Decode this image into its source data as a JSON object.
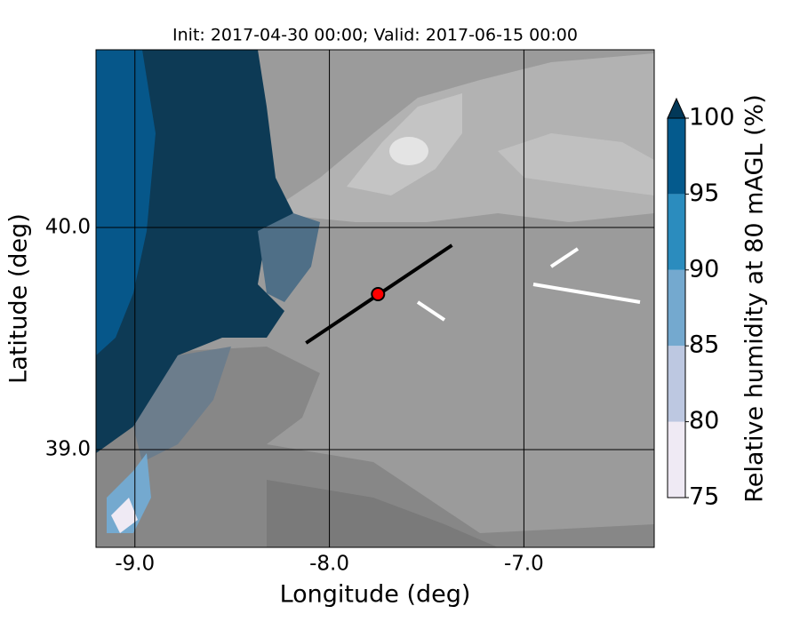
{
  "map": {
    "title": "Init: 2017-04-30 00:00; Valid: 2017-06-15 00:00",
    "xlabel": "Longitude (deg)",
    "ylabel": "Latitude (deg)",
    "xlim": [
      -9.2,
      -6.33
    ],
    "ylim": [
      38.56,
      40.8
    ],
    "xticks": [
      {
        "value": -9,
        "label": "-9.0"
      },
      {
        "value": -8,
        "label": "-8.0"
      },
      {
        "value": -7,
        "label": "-7.0"
      }
    ],
    "yticks": [
      {
        "value": 39,
        "label": "39.0"
      },
      {
        "value": 40,
        "label": "40.0"
      }
    ],
    "transect": {
      "lon": [
        -8.12,
        -7.37
      ],
      "lat": [
        39.48,
        39.92
      ],
      "color": "#000000"
    },
    "point": {
      "lon": -7.75,
      "lat": 39.7,
      "color": "#ff0000"
    },
    "colorbar": {
      "label": "Relative humidity at 80 mAGL (%)",
      "ticks": [
        75,
        80,
        85,
        90,
        95,
        100
      ],
      "colors": [
        "#efeaf4",
        "#bdc8e1",
        "#74a9cf",
        "#2b8cbe",
        "#045a8d"
      ],
      "extend_color": "#023858"
    }
  }
}
